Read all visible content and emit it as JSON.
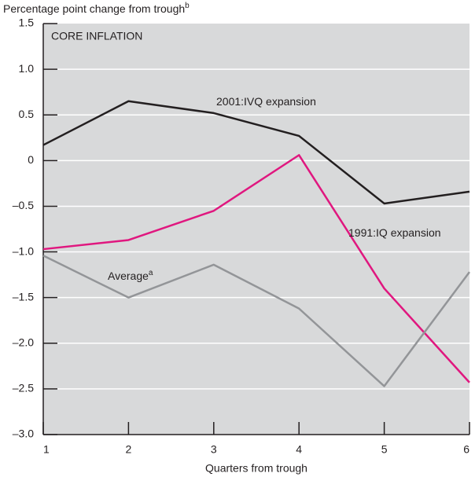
{
  "chart_data": {
    "type": "line",
    "title": "CORE INFLATION",
    "y_label": "Percentage point change from trough",
    "y_label_note": "b",
    "x_label": "Quarters from trough",
    "x": [
      1,
      2,
      3,
      4,
      5,
      6
    ],
    "xlim": [
      1,
      6
    ],
    "xticks": [
      1,
      2,
      3,
      4,
      5,
      6
    ],
    "ylim": [
      -3,
      1.5
    ],
    "yticks": [
      {
        "value": -3,
        "label": "–3.0"
      },
      {
        "value": -2.5,
        "label": "–2.5"
      },
      {
        "value": -2,
        "label": "–2.0"
      },
      {
        "value": -1.5,
        "label": "–1.5"
      },
      {
        "value": -1,
        "label": "–1.0"
      },
      {
        "value": -0.5,
        "label": "–0.5"
      },
      0,
      0.5,
      {
        "value": 1,
        "label": "1.0"
      },
      1.5
    ],
    "grid": true,
    "series": [
      {
        "name": "2001:IVQ expansion",
        "color": "#231f20",
        "values": [
          0.17,
          0.65,
          0.52,
          0.27,
          -0.47,
          -0.34
        ]
      },
      {
        "name": "1991:IQ expansion",
        "color": "#e0177f",
        "values": [
          -0.97,
          -0.87,
          -0.55,
          0.06,
          -1.4,
          -2.43
        ]
      },
      {
        "name": "Average",
        "note": "a",
        "color": "#939598",
        "values": [
          -1.04,
          -1.5,
          -1.14,
          -1.62,
          -2.47,
          -1.22
        ]
      }
    ]
  }
}
